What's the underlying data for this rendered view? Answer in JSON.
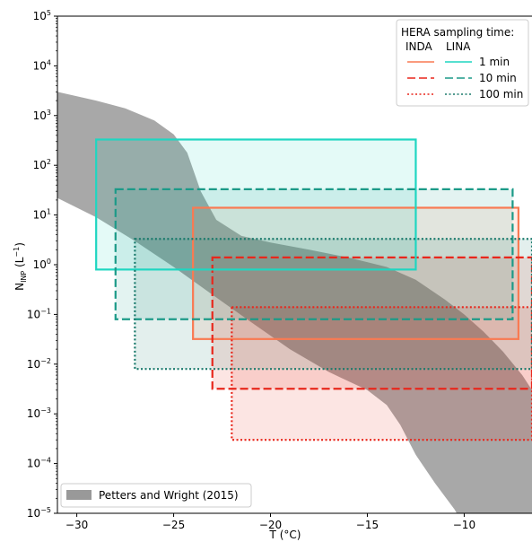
{
  "chart_data": {
    "type": "area",
    "title": "",
    "xlabel": "T (°C)",
    "ylabel_main": "N",
    "ylabel_sub": "INP",
    "ylabel_unit_open": " (L",
    "ylabel_unit_exp": "−1",
    "ylabel_unit_close": ")",
    "xlim": [
      -31,
      -6.5
    ],
    "ylim_log10": [
      -5,
      5
    ],
    "y_scale": "log",
    "grid": false,
    "x_ticks": [
      {
        "value": -30,
        "label": "−30"
      },
      {
        "value": -25,
        "label": "−25"
      },
      {
        "value": -20,
        "label": "−20"
      },
      {
        "value": -15,
        "label": "−15"
      },
      {
        "value": -10,
        "label": "−10"
      }
    ],
    "y_ticks": [
      {
        "exp": -5,
        "base": "10",
        "sup": "−5"
      },
      {
        "exp": -4,
        "base": "10",
        "sup": "−4"
      },
      {
        "exp": -3,
        "base": "10",
        "sup": "−3"
      },
      {
        "exp": -2,
        "base": "10",
        "sup": "−2"
      },
      {
        "exp": -1,
        "base": "10",
        "sup": "−1"
      },
      {
        "exp": 0,
        "base": "10",
        "sup": "0"
      },
      {
        "exp": 1,
        "base": "10",
        "sup": "1"
      },
      {
        "exp": 2,
        "base": "10",
        "sup": "2"
      },
      {
        "exp": 3,
        "base": "10",
        "sup": "3"
      },
      {
        "exp": 4,
        "base": "10",
        "sup": "4"
      },
      {
        "exp": 5,
        "base": "10",
        "sup": "5"
      }
    ],
    "band": {
      "name": "Petters and Wright (2015)",
      "color": "#999999",
      "upper": [
        [
          -31,
          3000
        ],
        [
          -29,
          2000
        ],
        [
          -27.5,
          1400
        ],
        [
          -26,
          800
        ],
        [
          -25,
          420
        ],
        [
          -24.3,
          180
        ],
        [
          -23.6,
          30
        ],
        [
          -22.8,
          8
        ],
        [
          -21.5,
          3.8
        ],
        [
          -20,
          2.8
        ],
        [
          -18,
          2.0
        ],
        [
          -16,
          1.4
        ],
        [
          -14,
          0.9
        ],
        [
          -12.5,
          0.5
        ],
        [
          -11,
          0.2
        ],
        [
          -10,
          0.1
        ],
        [
          -9,
          0.045
        ],
        [
          -8,
          0.018
        ],
        [
          -7,
          0.006
        ],
        [
          -6.5,
          0.003
        ]
      ],
      "lower": [
        [
          -31,
          22
        ],
        [
          -29,
          9
        ],
        [
          -27,
          3
        ],
        [
          -25,
          0.9
        ],
        [
          -23,
          0.25
        ],
        [
          -21,
          0.07
        ],
        [
          -19,
          0.02
        ],
        [
          -17,
          0.007
        ],
        [
          -15,
          0.003
        ],
        [
          -14,
          0.0015
        ],
        [
          -13.3,
          0.0006
        ],
        [
          -12.5,
          0.00015
        ],
        [
          -11.5,
          4e-05
        ],
        [
          -10.5,
          1.2e-05
        ],
        [
          -9.8,
          4e-06
        ],
        [
          -6.5,
          4e-06
        ]
      ]
    },
    "boxes": [
      {
        "name": "INDA 1 min",
        "instrument": "INDA",
        "time": "1 min",
        "color": "#f97a52",
        "style": "solid",
        "x0": -24,
        "x1": -7.2,
        "y0": 0.032,
        "y1": 14
      },
      {
        "name": "INDA 10 min",
        "instrument": "INDA",
        "time": "10 min",
        "color": "#e8271c",
        "style": "dashed",
        "x0": -23,
        "x1": -6.5,
        "y0": 0.0032,
        "y1": 1.4
      },
      {
        "name": "INDA 100 min",
        "instrument": "INDA",
        "time": "100 min",
        "color": "#e8271c",
        "style": "dotted",
        "x0": -22,
        "x1": -6.5,
        "y0": 0.0003,
        "y1": 0.14
      },
      {
        "name": "LINA 1 min",
        "instrument": "LINA",
        "time": "1 min",
        "color": "#1fd6c1",
        "style": "solid",
        "x0": -29,
        "x1": -12.5,
        "y0": 0.8,
        "y1": 330
      },
      {
        "name": "LINA 10 min",
        "instrument": "LINA",
        "time": "10 min",
        "color": "#1c9a88",
        "style": "dashed",
        "x0": -28,
        "x1": -7.5,
        "y0": 0.08,
        "y1": 33
      },
      {
        "name": "LINA 100 min",
        "instrument": "LINA",
        "time": "100 min",
        "color": "#1a7a6c",
        "style": "dotted",
        "x0": -27,
        "x1": -6.5,
        "y0": 0.008,
        "y1": 3.3
      }
    ]
  },
  "legend_top": {
    "title": "HERA sampling time:",
    "col_inda": "INDA",
    "col_lina": "LINA",
    "rows": [
      {
        "label": "1 min",
        "inda_color": "#f97a52",
        "lina_color": "#1fd6c1",
        "style": "solid"
      },
      {
        "label": "10 min",
        "inda_color": "#e8271c",
        "lina_color": "#1c9a88",
        "style": "dashed"
      },
      {
        "label": "100 min",
        "inda_color": "#e8271c",
        "lina_color": "#1a7a6c",
        "style": "dotted"
      }
    ]
  },
  "legend_bottom": {
    "label": "Petters and Wright (2015)",
    "color": "#999999"
  }
}
